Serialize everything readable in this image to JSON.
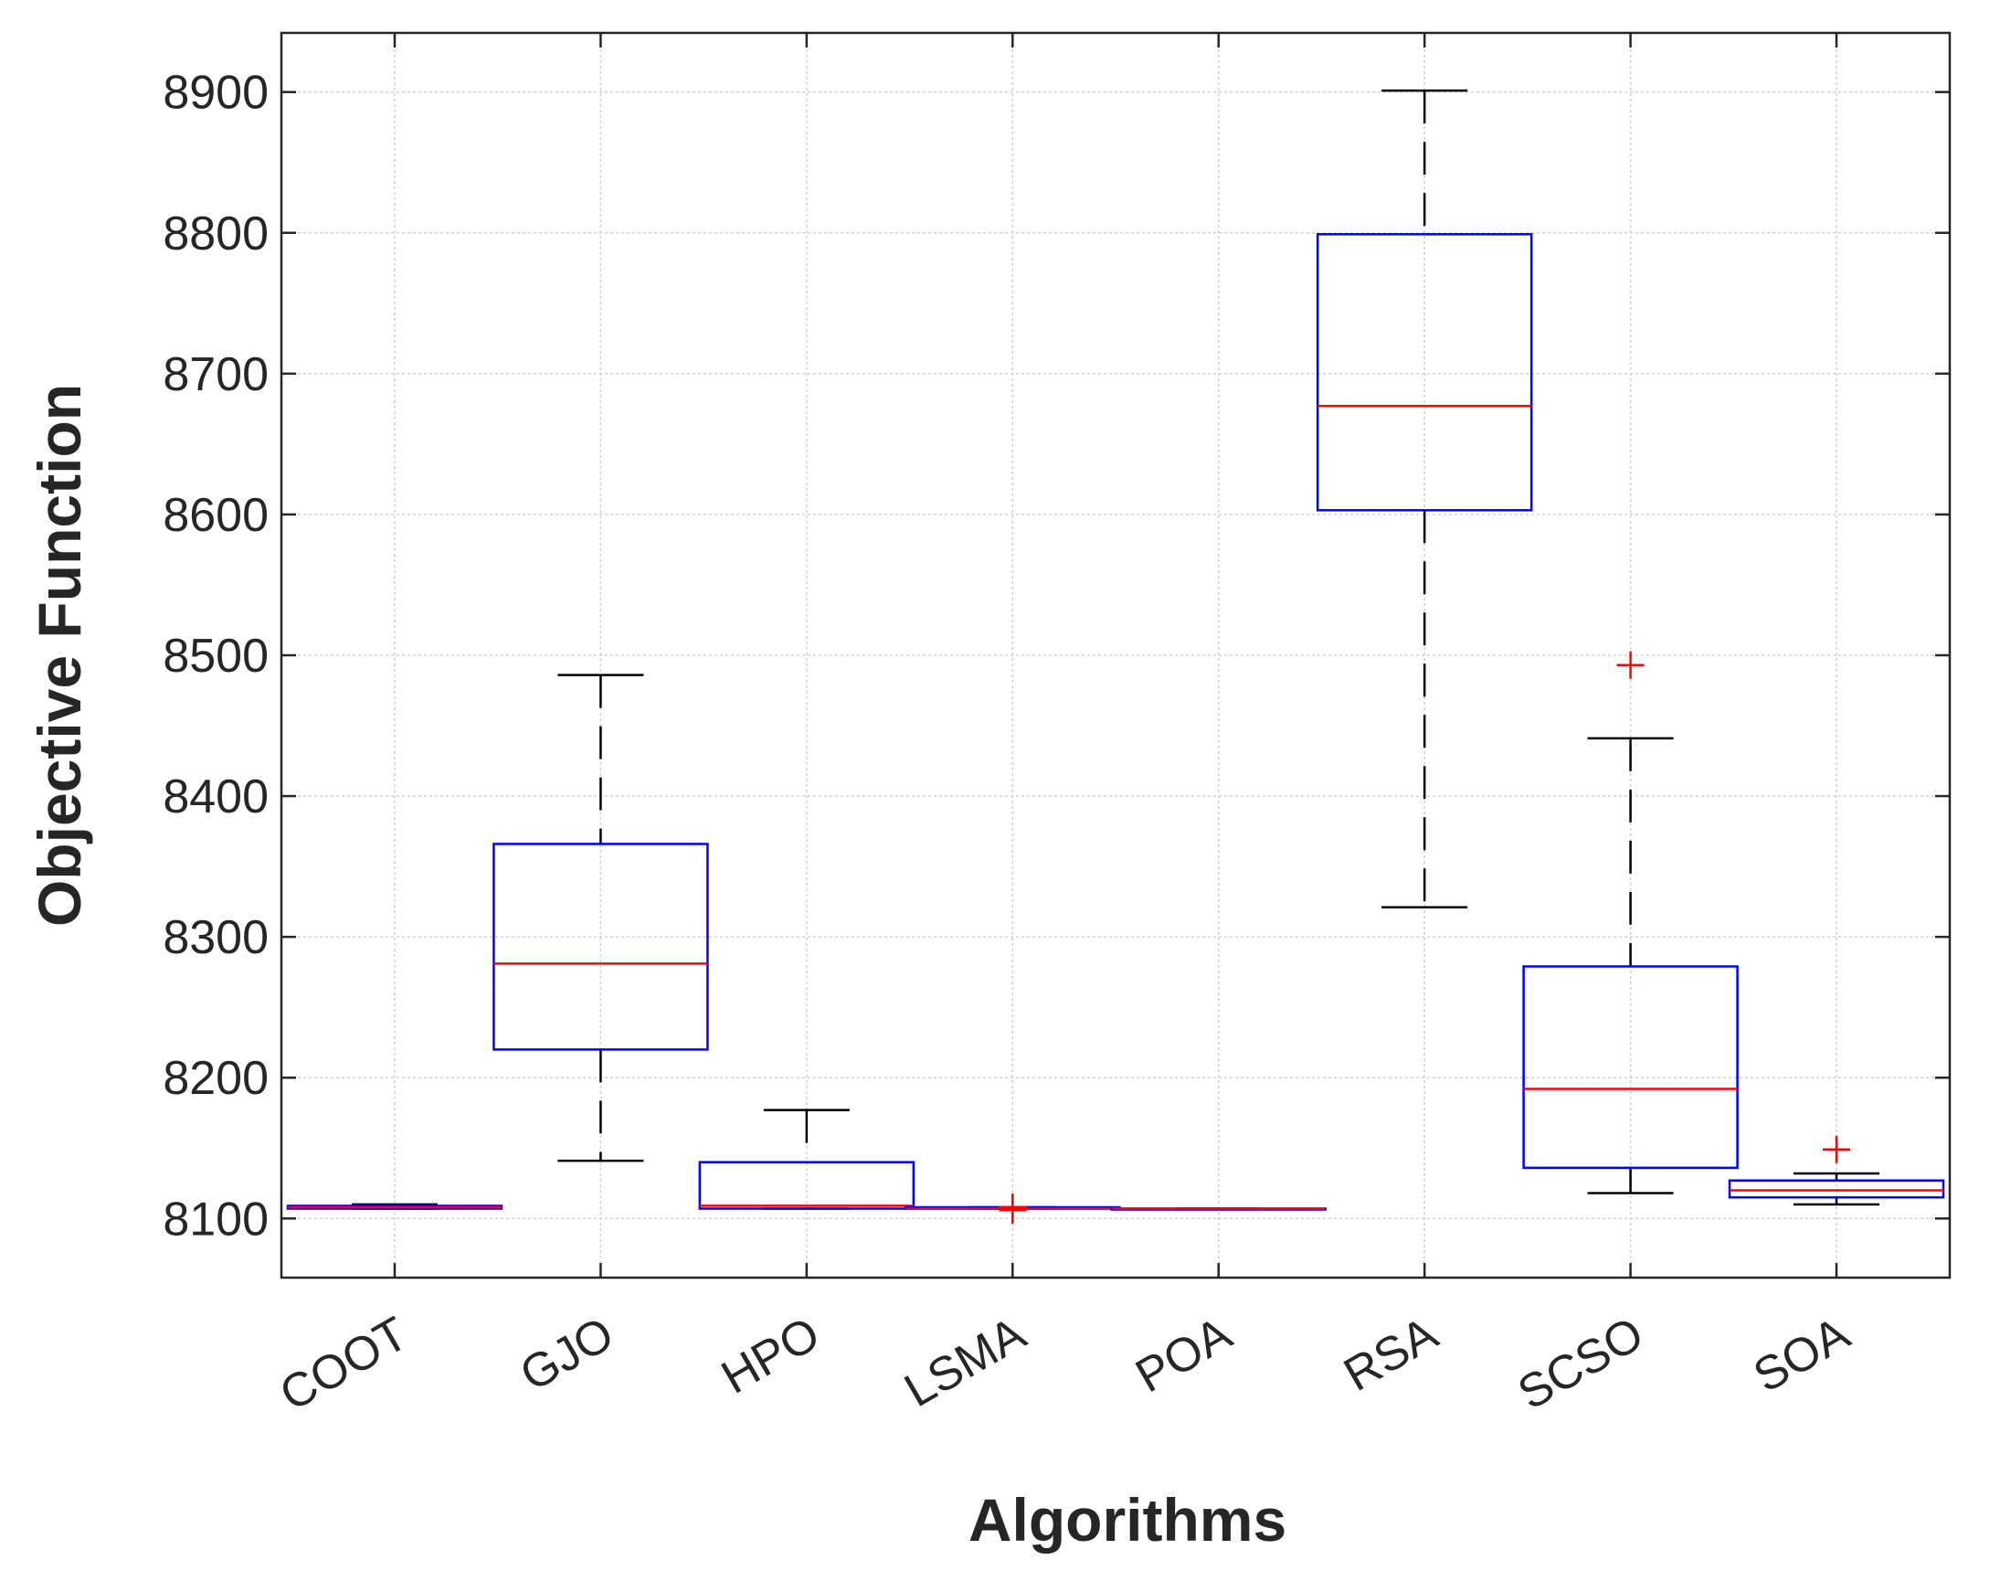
{
  "chart_data": {
    "type": "box",
    "xlabel": "Algorithms",
    "ylabel": "Objective Function",
    "ylim": [
      8058,
      8942
    ],
    "y_ticks": [
      8100,
      8200,
      8300,
      8400,
      8500,
      8600,
      8700,
      8800,
      8900
    ],
    "y_tick_labels": [
      "8100",
      "8200",
      "8300",
      "8400",
      "8500",
      "8600",
      "8700",
      "8800",
      "8900"
    ],
    "categories": [
      "COOT",
      "GJO",
      "HPO",
      "LSMA",
      "POA",
      "RSA",
      "SCSO",
      "SOA"
    ],
    "grid": true,
    "colors": {
      "box": "#0000ff",
      "median": "#ff0000",
      "whisker": "#000000",
      "outlier": "#ff0000",
      "grid": "#d0d0d0",
      "axis": "#262626"
    },
    "boxes": [
      {
        "name": "COOT",
        "whisker_low": 8107,
        "q1": 8107,
        "median": 8108,
        "q3": 8109,
        "whisker_high": 8110,
        "outliers": []
      },
      {
        "name": "GJO",
        "whisker_low": 8141,
        "q1": 8220,
        "median": 8281,
        "q3": 8366,
        "whisker_high": 8486,
        "outliers": []
      },
      {
        "name": "HPO",
        "whisker_low": 8107,
        "q1": 8107,
        "median": 8109,
        "q3": 8140,
        "whisker_high": 8177,
        "outliers": []
      },
      {
        "name": "LSMA",
        "whisker_low": 8107,
        "q1": 8107,
        "median": 8107,
        "q3": 8108,
        "whisker_high": 8108,
        "outliers": [
          8106,
          8108
        ]
      },
      {
        "name": "POA",
        "whisker_low": 8107,
        "q1": 8107,
        "median": 8107,
        "q3": 8107,
        "whisker_high": 8107,
        "outliers": []
      },
      {
        "name": "RSA",
        "whisker_low": 8321,
        "q1": 8603,
        "median": 8677,
        "q3": 8799,
        "whisker_high": 8901,
        "outliers": []
      },
      {
        "name": "SCSO",
        "whisker_low": 8118,
        "q1": 8136,
        "median": 8192,
        "q3": 8279,
        "whisker_high": 8441,
        "outliers": [
          8493
        ]
      },
      {
        "name": "SOA",
        "whisker_low": 8110,
        "q1": 8115,
        "median": 8120,
        "q3": 8127,
        "whisker_high": 8132,
        "outliers": [
          8149
        ]
      }
    ]
  }
}
